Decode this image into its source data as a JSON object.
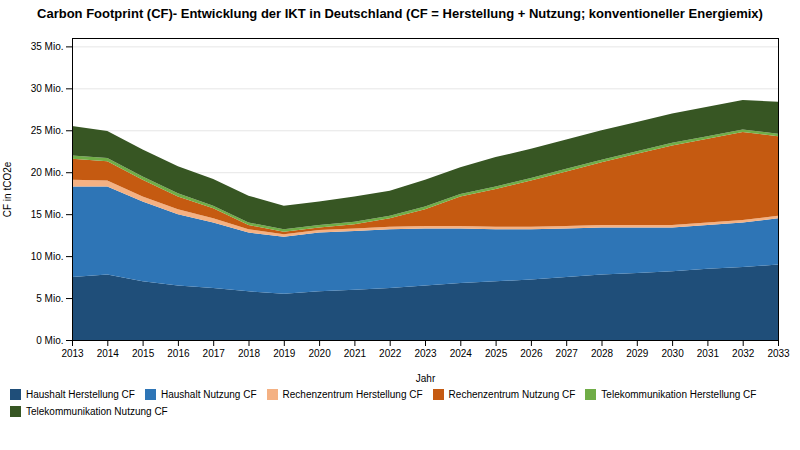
{
  "chart_data": {
    "type": "area",
    "stacked": true,
    "title": "Carbon Footprint (CF)- Entwicklung der IKT in Deutschland (CF = Herstellung + Nutzung; konventioneller Energiemix)",
    "xlabel": "Jahr",
    "ylabel": "CF in tCO2e",
    "x": [
      2013,
      2014,
      2015,
      2016,
      2017,
      2018,
      2019,
      2020,
      2021,
      2022,
      2023,
      2024,
      2025,
      2026,
      2027,
      2028,
      2029,
      2030,
      2031,
      2032,
      2033
    ],
    "series": [
      {
        "name": "Haushalt Herstellung CF",
        "color": "#1F4E79",
        "values": [
          7.5,
          7.8,
          7.0,
          6.5,
          6.2,
          5.8,
          5.5,
          5.8,
          6.0,
          6.2,
          6.5,
          6.8,
          7.0,
          7.2,
          7.5,
          7.8,
          8.0,
          8.2,
          8.5,
          8.7,
          9.0
        ]
      },
      {
        "name": "Haushalt Nutzung CF",
        "color": "#2E75B6",
        "values": [
          10.8,
          10.5,
          9.5,
          8.5,
          7.8,
          7.0,
          6.8,
          7.0,
          7.0,
          7.0,
          6.8,
          6.5,
          6.2,
          6.0,
          5.8,
          5.6,
          5.4,
          5.2,
          5.2,
          5.3,
          5.5
        ]
      },
      {
        "name": "Rechenzentrum Herstellung CF",
        "color": "#F4B183",
        "values": [
          0.8,
          0.7,
          0.6,
          0.6,
          0.5,
          0.4,
          0.3,
          0.3,
          0.3,
          0.3,
          0.3,
          0.3,
          0.3,
          0.3,
          0.3,
          0.3,
          0.3,
          0.3,
          0.3,
          0.3,
          0.3
        ]
      },
      {
        "name": "Rechenzentrum Nutzung CF",
        "color": "#C55A11",
        "values": [
          2.5,
          2.3,
          2.0,
          1.5,
          1.2,
          0.5,
          0.3,
          0.3,
          0.5,
          1.0,
          2.0,
          3.5,
          4.5,
          5.5,
          6.5,
          7.5,
          8.5,
          9.5,
          10.0,
          10.5,
          9.5
        ]
      },
      {
        "name": "Telekommunikation Herstellung CF",
        "color": "#70AD47",
        "values": [
          0.4,
          0.4,
          0.4,
          0.4,
          0.3,
          0.3,
          0.3,
          0.3,
          0.3,
          0.3,
          0.3,
          0.3,
          0.3,
          0.3,
          0.3,
          0.3,
          0.3,
          0.3,
          0.3,
          0.3,
          0.3
        ]
      },
      {
        "name": "Telekommunikation Nutzung CF",
        "color": "#375623",
        "values": [
          3.5,
          3.2,
          3.2,
          3.2,
          3.2,
          3.2,
          2.8,
          2.8,
          3.0,
          3.0,
          3.2,
          3.2,
          3.5,
          3.5,
          3.5,
          3.5,
          3.5,
          3.5,
          3.5,
          3.5,
          3.8
        ]
      }
    ],
    "xlim": [
      2013,
      2033
    ],
    "xticks": [
      2013,
      2014,
      2015,
      2016,
      2017,
      2018,
      2019,
      2020,
      2021,
      2022,
      2023,
      2024,
      2025,
      2026,
      2027,
      2028,
      2029,
      2030,
      2031,
      2032,
      2033
    ],
    "ylim": [
      0,
      36
    ],
    "yticks": [
      {
        "value": 0,
        "label": "0 Mio."
      },
      {
        "value": 5,
        "label": "5 Mio."
      },
      {
        "value": 10,
        "label": "10 Mio."
      },
      {
        "value": 15,
        "label": "15 Mio."
      },
      {
        "value": 20,
        "label": "20 Mio."
      },
      {
        "value": 25,
        "label": "25 Mio."
      },
      {
        "value": 30,
        "label": "30 Mio."
      },
      {
        "value": 35,
        "label": "35 Mio."
      }
    ],
    "grid": true,
    "legend": "bottom"
  }
}
